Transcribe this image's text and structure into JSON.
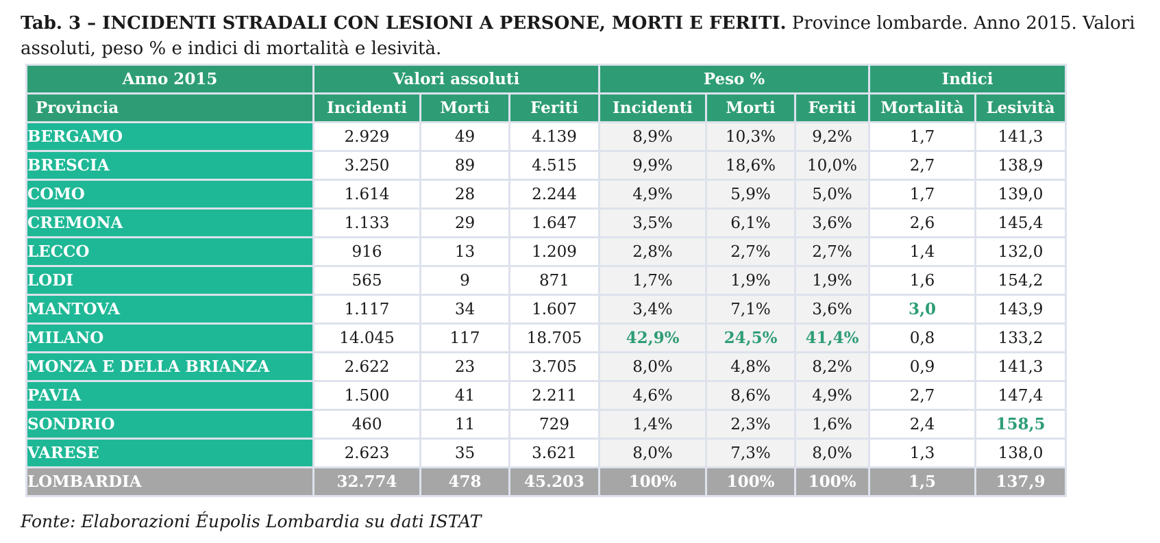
{
  "caption": {
    "bold": "Tab. 3 – INCIDENTI STRADALI CON LESIONI A PERSONE, MORTI E FERITI.",
    "normal": " Province lombarde. Anno 2015. Valori assoluti, peso % e indici di mortalità e lesività."
  },
  "header": {
    "group_year": "Anno 2015",
    "group_abs": "Valori assoluti",
    "group_pct": "Peso %",
    "group_idx": "Indici",
    "col_provincia": "Provincia",
    "col_incidenti": "Incidenti",
    "col_morti": "Morti",
    "col_feriti": "Feriti",
    "col_incidenti_pct": "Incidenti",
    "col_morti_pct": "Morti",
    "col_feriti_pct": "Feriti",
    "col_mortalita": "Mortalità",
    "col_lesivita": "Lesività"
  },
  "rows": [
    {
      "provincia": "BERGAMO",
      "incidenti": "2.929",
      "morti": "49",
      "feriti": "4.139",
      "incidenti_pct": "8,9%",
      "morti_pct": "10,3%",
      "feriti_pct": "9,2%",
      "mortalita": "1,7",
      "lesivita": "141,3"
    },
    {
      "provincia": "BRESCIA",
      "incidenti": "3.250",
      "morti": "89",
      "feriti": "4.515",
      "incidenti_pct": "9,9%",
      "morti_pct": "18,6%",
      "feriti_pct": "10,0%",
      "mortalita": "2,7",
      "lesivita": "138,9"
    },
    {
      "provincia": "COMO",
      "incidenti": "1.614",
      "morti": "28",
      "feriti": "2.244",
      "incidenti_pct": "4,9%",
      "morti_pct": "5,9%",
      "feriti_pct": "5,0%",
      "mortalita": "1,7",
      "lesivita": "139,0"
    },
    {
      "provincia": "CREMONA",
      "incidenti": "1.133",
      "morti": "29",
      "feriti": "1.647",
      "incidenti_pct": "3,5%",
      "morti_pct": "6,1%",
      "feriti_pct": "3,6%",
      "mortalita": "2,6",
      "lesivita": "145,4"
    },
    {
      "provincia": "LECCO",
      "incidenti": "916",
      "morti": "13",
      "feriti": "1.209",
      "incidenti_pct": "2,8%",
      "morti_pct": "2,7%",
      "feriti_pct": "2,7%",
      "mortalita": "1,4",
      "lesivita": "132,0"
    },
    {
      "provincia": "LODI",
      "incidenti": "565",
      "morti": "9",
      "feriti": "871",
      "incidenti_pct": "1,7%",
      "morti_pct": "1,9%",
      "feriti_pct": "1,9%",
      "mortalita": "1,6",
      "lesivita": "154,2"
    },
    {
      "provincia": "MANTOVA",
      "incidenti": "1.117",
      "morti": "34",
      "feriti": "1.607",
      "incidenti_pct": "3,4%",
      "morti_pct": "7,1%",
      "feriti_pct": "3,6%",
      "mortalita": "3,0",
      "lesivita": "143,9"
    },
    {
      "provincia": "MILANO",
      "incidenti": "14.045",
      "morti": "117",
      "feriti": "18.705",
      "incidenti_pct": "42,9%",
      "morti_pct": "24,5%",
      "feriti_pct": "41,4%",
      "mortalita": "0,8",
      "lesivita": "133,2"
    },
    {
      "provincia": "MONZA E DELLA BRIANZA",
      "incidenti": "2.622",
      "morti": "23",
      "feriti": "3.705",
      "incidenti_pct": "8,0%",
      "morti_pct": "4,8%",
      "feriti_pct": "8,2%",
      "mortalita": "0,9",
      "lesivita": "141,3"
    },
    {
      "provincia": "PAVIA",
      "incidenti": "1.500",
      "morti": "41",
      "feriti": "2.211",
      "incidenti_pct": "4,6%",
      "morti_pct": "8,6%",
      "feriti_pct": "4,9%",
      "mortalita": "2,7",
      "lesivita": "147,4"
    },
    {
      "provincia": "SONDRIO",
      "incidenti": "460",
      "morti": "11",
      "feriti": "729",
      "incidenti_pct": "1,4%",
      "morti_pct": "2,3%",
      "feriti_pct": "1,6%",
      "mortalita": "2,4",
      "lesivita": "158,5"
    },
    {
      "provincia": "VARESE",
      "incidenti": "2.623",
      "morti": "35",
      "feriti": "3.621",
      "incidenti_pct": "8,0%",
      "morti_pct": "7,3%",
      "feriti_pct": "8,0%",
      "mortalita": "1,3",
      "lesivita": "138,0"
    }
  ],
  "total": {
    "provincia": "LOMBARDIA",
    "incidenti": "32.774",
    "morti": "478",
    "feriti": "45.203",
    "incidenti_pct": "100%",
    "morti_pct": "100%",
    "feriti_pct": "100%",
    "mortalita": "1,5",
    "lesivita": "137,9"
  },
  "highlights": {
    "MILANO": [
      "incidenti_pct",
      "morti_pct",
      "feriti_pct"
    ],
    "MANTOVA": [
      "mortalita"
    ],
    "SONDRIO": [
      "lesivita"
    ]
  },
  "colors": {
    "header_green": "#2e9d75",
    "province_teal": "#1fb896",
    "highlight_green": "#2e9d75",
    "total_gray": "#a6a6a6",
    "shaded_cells": "#f2f2f2",
    "grid_lines": "#dde2ec"
  },
  "source": "Fonte: Elaborazioni Éupolis Lombardia su dati ISTAT"
}
